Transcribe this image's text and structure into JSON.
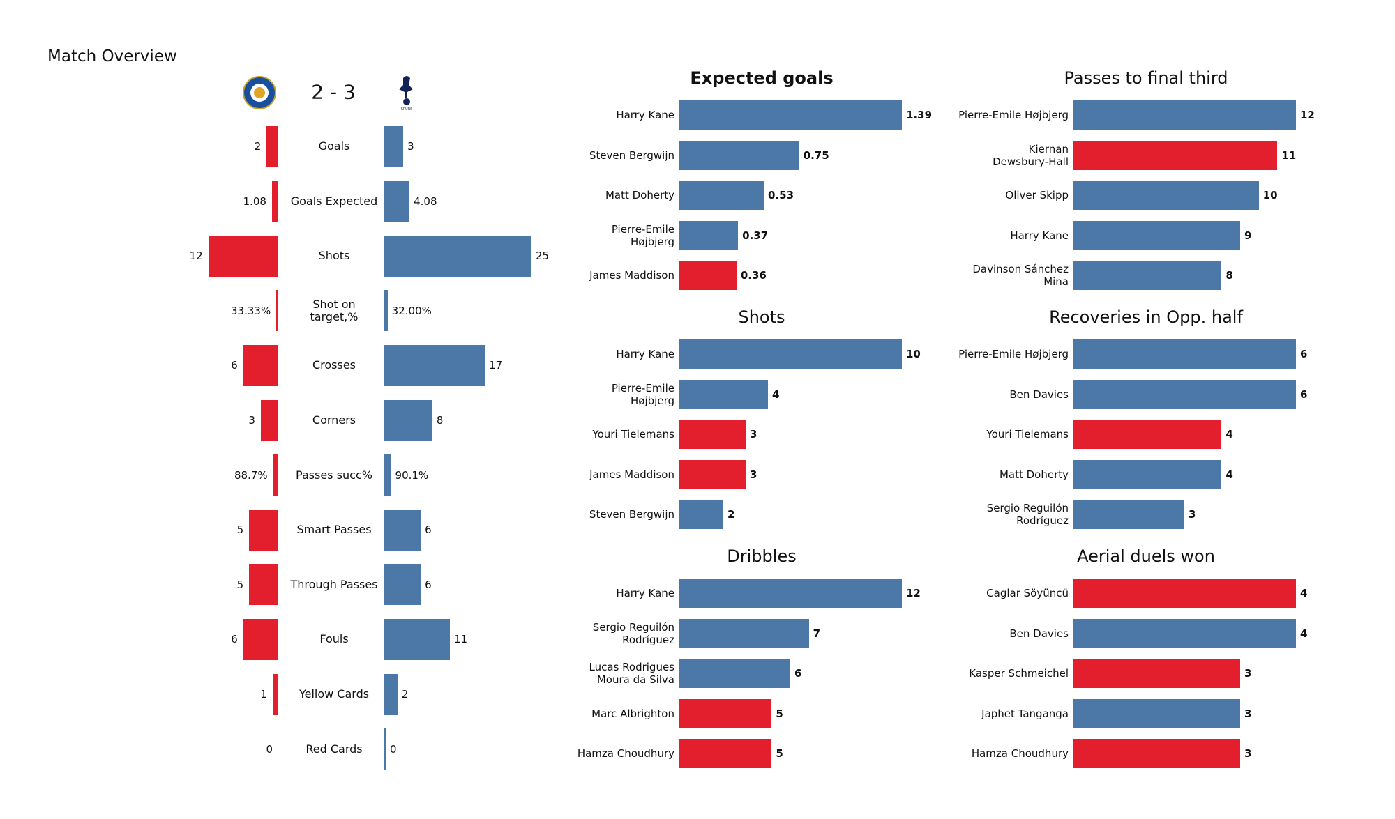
{
  "chart_data": [
    {
      "type": "diverging_bar",
      "title": "Match Overview",
      "score": "2 - 3",
      "categories": [
        "Goals",
        "Goals Expected",
        "Shots",
        "Shot on\ntarget,%",
        "Crosses",
        "Corners",
        "Passes succ%",
        "Smart Passes",
        "Through Passes",
        "Fouls",
        "Yellow Cards",
        "Red Cards"
      ],
      "series": [
        {
          "color": "#e41f2d",
          "values": [
            2,
            1.08,
            12,
            0.3333,
            6,
            3,
            0.887,
            5,
            5,
            6,
            1,
            0
          ],
          "value_labels": [
            "2",
            "1.08",
            "12",
            "33.33%",
            "6",
            "3",
            "88.7%",
            "5",
            "5",
            "6",
            "1",
            "0"
          ]
        },
        {
          "color": "#4c78a8",
          "values": [
            3,
            4.08,
            25,
            0.32,
            17,
            8,
            0.901,
            6,
            6,
            11,
            2,
            0
          ],
          "value_labels": [
            "3",
            "4.08",
            "25",
            "32.00%",
            "17",
            "8",
            "90.1%",
            "6",
            "6",
            "11",
            "2",
            "0"
          ]
        }
      ],
      "xlim": [
        0,
        25
      ]
    },
    {
      "type": "bar",
      "title": "Expected goals",
      "categories": [
        "Harry Kane",
        "Steven Bergwijn",
        "Matt Doherty",
        "Pierre-Emile\nHøjbjerg",
        "James Maddison"
      ],
      "values": [
        1.39,
        0.75,
        0.53,
        0.37,
        0.36
      ],
      "colors": [
        "#4c78a8",
        "#4c78a8",
        "#4c78a8",
        "#4c78a8",
        "#e41f2d"
      ],
      "xlim": [
        0,
        1.39
      ]
    },
    {
      "type": "bar",
      "title": "Passes to final third",
      "categories": [
        "Pierre-Emile Højbjerg",
        "Kiernan\nDewsbury-Hall",
        "Oliver Skipp",
        "Harry Kane",
        "Davinson Sánchez\nMina"
      ],
      "values": [
        12,
        11,
        10,
        9,
        8
      ],
      "colors": [
        "#4c78a8",
        "#e41f2d",
        "#4c78a8",
        "#4c78a8",
        "#4c78a8"
      ],
      "xlim": [
        0,
        12
      ]
    },
    {
      "type": "bar",
      "title": "Shots",
      "categories": [
        "Harry Kane",
        "Pierre-Emile\nHøjbjerg",
        "Youri Tielemans",
        "James Maddison",
        "Steven Bergwijn"
      ],
      "values": [
        10,
        4,
        3,
        3,
        2
      ],
      "colors": [
        "#4c78a8",
        "#4c78a8",
        "#e41f2d",
        "#e41f2d",
        "#4c78a8"
      ],
      "xlim": [
        0,
        10
      ]
    },
    {
      "type": "bar",
      "title": "Recoveries in Opp. half",
      "categories": [
        "Pierre-Emile Højbjerg",
        "Ben Davies",
        "Youri Tielemans",
        "Matt Doherty",
        "Sergio Reguilón\nRodríguez"
      ],
      "values": [
        6,
        6,
        4,
        4,
        3
      ],
      "colors": [
        "#4c78a8",
        "#4c78a8",
        "#e41f2d",
        "#4c78a8",
        "#4c78a8"
      ],
      "xlim": [
        0,
        6
      ]
    },
    {
      "type": "bar",
      "title": "Dribbles",
      "categories": [
        "Harry Kane",
        "Sergio Reguilón\nRodríguez",
        "Lucas Rodrigues\nMoura da Silva",
        "Marc Albrighton",
        "Hamza Choudhury"
      ],
      "values": [
        12,
        7,
        6,
        5,
        5
      ],
      "colors": [
        "#4c78a8",
        "#4c78a8",
        "#4c78a8",
        "#e41f2d",
        "#e41f2d"
      ],
      "xlim": [
        0,
        12
      ]
    },
    {
      "type": "bar",
      "title": "Aerial duels won",
      "categories": [
        "Caglar Söyüncü",
        "Ben Davies",
        "Kasper Schmeichel",
        "Japhet Tanganga",
        "Hamza Choudhury"
      ],
      "values": [
        4,
        4,
        3,
        3,
        3
      ],
      "colors": [
        "#e41f2d",
        "#4c78a8",
        "#e41f2d",
        "#4c78a8",
        "#e41f2d"
      ],
      "xlim": [
        0,
        4
      ]
    }
  ]
}
